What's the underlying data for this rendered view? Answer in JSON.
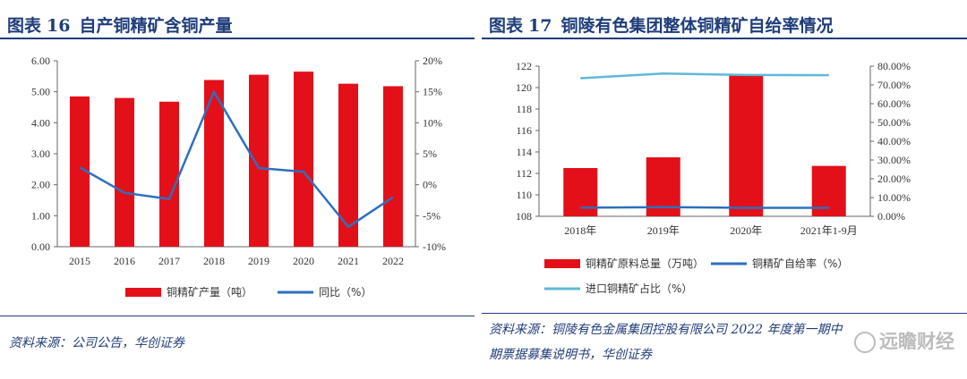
{
  "chart_data": [
    {
      "type": "bar",
      "fig_label": "图表",
      "fig_num": "16",
      "title": "自产铜精矿含铜产量",
      "categories": [
        "2015",
        "2016",
        "2017",
        "2018",
        "2019",
        "2020",
        "2021",
        "2022"
      ],
      "series": [
        {
          "name": "铜精矿产量（吨）",
          "type": "bar",
          "axis": "left",
          "color": "#e3101a",
          "values": [
            4.85,
            4.8,
            4.68,
            5.38,
            5.55,
            5.65,
            5.26,
            5.18
          ]
        },
        {
          "name": "同比（%）",
          "type": "line",
          "axis": "right",
          "color": "#2e6fbd",
          "values": [
            2.8,
            -1.3,
            -2.3,
            15.0,
            2.7,
            2.1,
            -6.8,
            -2.0
          ]
        }
      ],
      "y_left": {
        "min": 0,
        "max": 6,
        "ticks": [
          "0.00",
          "1.00",
          "2.00",
          "3.00",
          "4.00",
          "5.00",
          "6.00"
        ]
      },
      "y_right": {
        "min": -10,
        "max": 20,
        "ticks": [
          "-10%",
          "-5%",
          "0%",
          "5%",
          "10%",
          "15%",
          "20%"
        ]
      },
      "source": "资料来源：公司公告，华创证券"
    },
    {
      "type": "bar",
      "fig_label": "图表",
      "fig_num": "17",
      "title": "铜陵有色集团整体铜精矿自给率情况",
      "categories": [
        "2018年",
        "2019年",
        "2020年",
        "2021年1-9月"
      ],
      "series": [
        {
          "name": "铜精矿原料总量（万吨）",
          "type": "bar",
          "axis": "left",
          "color": "#e3101a",
          "values": [
            112.5,
            113.5,
            121.2,
            112.7
          ]
        },
        {
          "name": "铜精矿自给率（%）",
          "type": "line",
          "axis": "right",
          "color": "#2e6fbd",
          "values": [
            4.6,
            4.9,
            4.5,
            4.5
          ]
        },
        {
          "name": "进口铜精矿占比（%）",
          "type": "line",
          "axis": "right",
          "color": "#5fb8d8",
          "values": [
            73.6,
            76.1,
            75.3,
            75.2
          ]
        }
      ],
      "y_left": {
        "min": 108,
        "max": 122,
        "ticks": [
          "108",
          "110",
          "112",
          "114",
          "116",
          "118",
          "120",
          "122"
        ]
      },
      "y_right": {
        "min": 0,
        "max": 80,
        "ticks": [
          "0.00%",
          "10.00%",
          "20.00%",
          "30.00%",
          "40.00%",
          "50.00%",
          "60.00%",
          "70.00%",
          "80.00%"
        ]
      },
      "source_lines": [
        "资料来源：铜陵有色金属集团控股有限公司 2022 年度第一期中",
        "期票据募集说明书，华创证券"
      ]
    }
  ],
  "watermark": "远瞻财经"
}
